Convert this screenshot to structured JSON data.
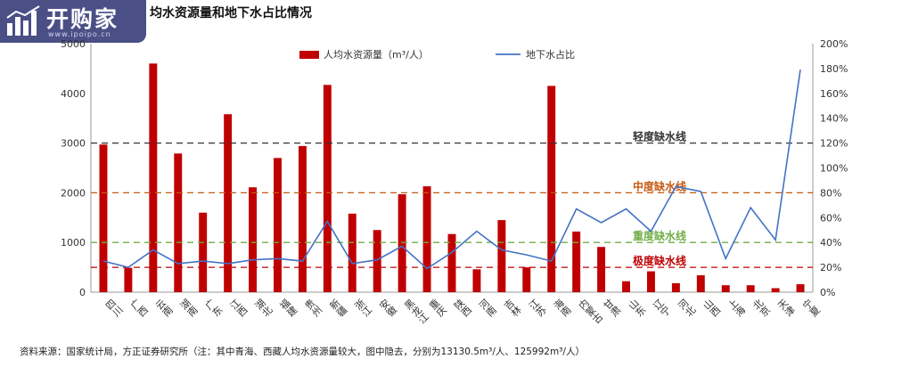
{
  "title": "均水资源量和地下水占比情况",
  "logo": {
    "text": "开购家",
    "url": "www.ipoipo.cn"
  },
  "source": "资料来源：国家统计局，方正证券研究所（注：其中青海、西藏人均水资源量较大，图中隐去，分别为13130.5m³/人、125992m³/人）",
  "colors": {
    "bar": "#c00000",
    "line": "#4472c4",
    "light": "#333333",
    "moderate": "#c55a11",
    "heavy": "#70ad47",
    "extreme": "#c00000"
  },
  "chart_data": {
    "type": "bar+line",
    "categories": [
      "四川",
      "广西",
      "云南",
      "湖南",
      "广东",
      "江西",
      "湖北",
      "福建",
      "贵州",
      "新疆",
      "浙江",
      "安徽",
      "黑龙江",
      "重庆",
      "陕西",
      "河南",
      "吉林",
      "江苏",
      "海南",
      "内蒙古",
      "甘肃",
      "山东",
      "辽宁",
      "河北",
      "山西",
      "上海",
      "北京",
      "天津",
      "宁夏"
    ],
    "series": [
      {
        "name": "人均水资源量（m³/人）",
        "type": "bar",
        "axis": "left",
        "values": [
          2970,
          490,
          4600,
          2790,
          1600,
          3580,
          2110,
          2700,
          2940,
          4170,
          1580,
          1250,
          1970,
          2130,
          1170,
          460,
          1450,
          500,
          4150,
          1220,
          910,
          220,
          420,
          180,
          340,
          140,
          140,
          80,
          160
        ]
      },
      {
        "name": "地下水占比",
        "type": "line",
        "axis": "right",
        "values": [
          25,
          20,
          34,
          23,
          25,
          23,
          26,
          27,
          25,
          57,
          23,
          26,
          37,
          19,
          32,
          49,
          34,
          30,
          25,
          67,
          56,
          67,
          49,
          85,
          81,
          27,
          68,
          42,
          179
        ]
      }
    ],
    "y_left": {
      "min": 0,
      "max": 5000,
      "ticks": [
        "0",
        "1000",
        "2000",
        "3000",
        "4000",
        "5000"
      ]
    },
    "y_right": {
      "min": 0,
      "max": 200,
      "ticks": [
        "0%",
        "20%",
        "40%",
        "60%",
        "80%",
        "100%",
        "120%",
        "140%",
        "160%",
        "180%",
        "200%"
      ]
    },
    "thresholds": [
      {
        "label": "轻度缺水线",
        "value": 3000,
        "color_key": "light"
      },
      {
        "label": "中度缺水线",
        "value": 2000,
        "color_key": "moderate"
      },
      {
        "label": "重度缺水线",
        "value": 1000,
        "color_key": "heavy"
      },
      {
        "label": "极度缺水线",
        "value": 500,
        "color_key": "extreme"
      }
    ],
    "legend_position": "top-center"
  }
}
